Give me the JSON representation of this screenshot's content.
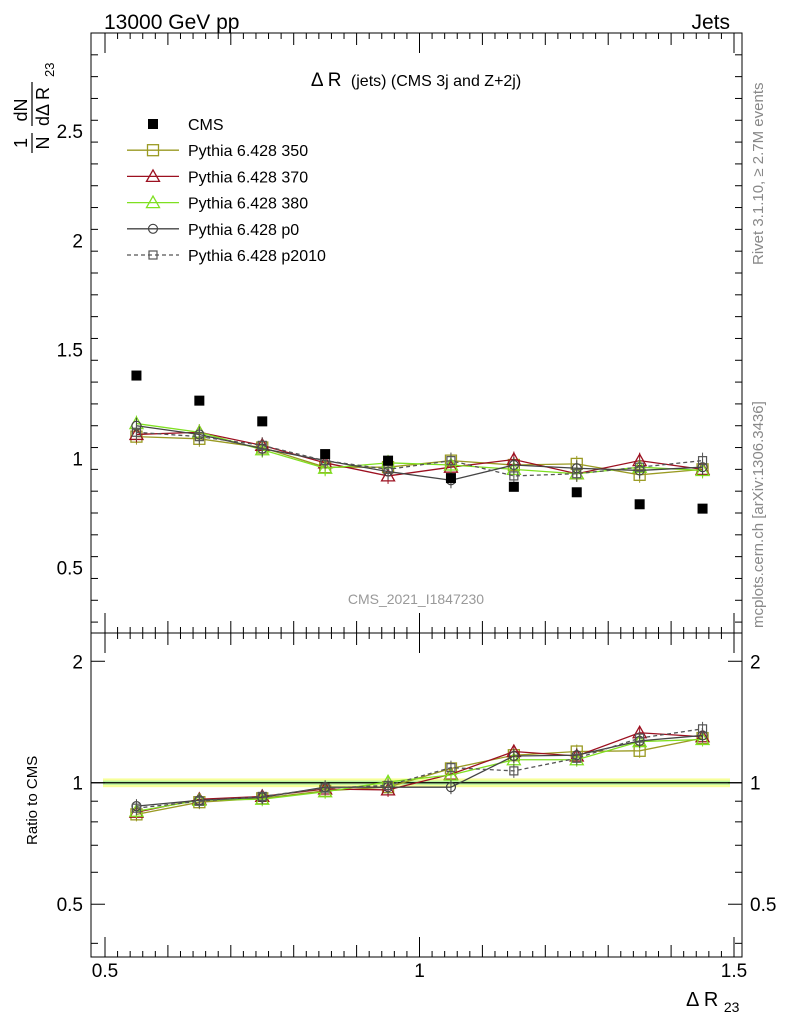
{
  "header": {
    "left": "13000 GeV pp",
    "right": "Jets"
  },
  "side_labels": {
    "rivet": "Rivet 3.1.10, ≥ 2.7M events",
    "mcplots": "mcplots.cern.ch [arXiv:1306.3436]"
  },
  "watermark": "CMS_2021_I1847230",
  "chart_data": [
    {
      "type": "scatter",
      "title_main": "Δ R",
      "title_detail": "(jets) (CMS 3j and Z+2j)",
      "ylabel_num": "1",
      "ylabel_den": "N",
      "ylabel_frac_num": "dN",
      "ylabel_frac_den": "dΔ R",
      "ylabel_sub": "23",
      "xlim": [
        0.5,
        1.5
      ],
      "ylim": [
        0.2,
        2.95
      ],
      "yticks": [
        0.5,
        1,
        1.5,
        2,
        2.5
      ],
      "ytick_labels": [
        "0.5",
        "1",
        "1.5",
        "2",
        "2.5"
      ],
      "x": [
        0.55,
        0.65,
        0.75,
        0.85,
        0.95,
        1.05,
        1.15,
        1.25,
        1.35,
        1.45
      ],
      "legend_position": "top-left",
      "series": [
        {
          "name": "CMS",
          "marker": "filled-square",
          "color": "#000000",
          "dash": "none",
          "values": [
            1.38,
            1.265,
            1.17,
            1.02,
            0.99,
            0.91,
            0.87,
            0.845,
            0.79,
            0.77
          ]
        },
        {
          "name": "Pythia 6.428 350",
          "marker": "open-square",
          "color": "#9a9a22",
          "dash": "none",
          "values": [
            1.1,
            1.09,
            1.05,
            0.96,
            0.96,
            0.99,
            0.97,
            0.975,
            0.925,
            0.95
          ]
        },
        {
          "name": "Pythia 6.428 370",
          "marker": "open-triangle",
          "color": "#9c1020",
          "dash": "none",
          "values": [
            1.11,
            1.12,
            1.06,
            0.98,
            0.92,
            0.96,
            0.995,
            0.93,
            0.99,
            0.95
          ]
        },
        {
          "name": "Pythia 6.428 380",
          "marker": "open-triangle",
          "color": "#7fe020",
          "dash": "none",
          "values": [
            1.16,
            1.12,
            1.04,
            0.955,
            0.98,
            0.97,
            0.95,
            0.93,
            0.96,
            0.945
          ]
        },
        {
          "name": "Pythia 6.428 p0",
          "marker": "open-circle",
          "color": "#444444",
          "dash": "none",
          "values": [
            1.15,
            1.11,
            1.045,
            0.99,
            0.94,
            0.9,
            0.97,
            0.955,
            0.945,
            0.96
          ]
        },
        {
          "name": "Pythia 6.428 p2010",
          "marker": "open-square-small",
          "color": "#555555",
          "dash": "dashed",
          "values": [
            1.12,
            1.1,
            1.06,
            0.99,
            0.95,
            0.99,
            0.92,
            0.93,
            0.96,
            0.99
          ]
        }
      ]
    },
    {
      "type": "scatter",
      "ylabel": "Ratio to CMS",
      "xlabel_main": "Δ R",
      "xlabel_sub": "23",
      "xlim": [
        0.5,
        1.5
      ],
      "ylim": [
        0.37,
        2.35
      ],
      "xticks": [
        0.5,
        1,
        1.5
      ],
      "xtick_labels": [
        "0.5",
        "1",
        "1.5"
      ],
      "yticks": [
        0.5,
        1,
        2
      ],
      "ytick_labels": [
        "0.5",
        "1",
        "2"
      ],
      "reference": 1,
      "x": [
        0.55,
        0.65,
        0.75,
        0.85,
        0.95,
        1.05,
        1.15,
        1.25,
        1.35,
        1.45
      ],
      "series": [
        {
          "name": "Pythia 6.428 350",
          "color": "#9a9a22",
          "marker": "open-square",
          "dash": "none",
          "values": [
            0.835,
            0.895,
            0.915,
            0.955,
            0.975,
            1.085,
            1.17,
            1.195,
            1.2,
            1.29
          ]
        },
        {
          "name": "Pythia 6.428 370",
          "color": "#9c1020",
          "marker": "open-triangle",
          "dash": "none",
          "values": [
            0.845,
            0.91,
            0.925,
            0.965,
            0.96,
            1.05,
            1.195,
            1.165,
            1.33,
            1.3
          ]
        },
        {
          "name": "Pythia 6.428 380",
          "color": "#7fe020",
          "marker": "open-triangle",
          "dash": "none",
          "values": [
            0.85,
            0.905,
            0.91,
            0.95,
            1.005,
            1.045,
            1.14,
            1.14,
            1.265,
            1.28
          ]
        },
        {
          "name": "Pythia 6.428 p0",
          "color": "#444444",
          "marker": "open-circle",
          "dash": "none",
          "values": [
            0.875,
            0.905,
            0.92,
            0.975,
            0.975,
            0.975,
            1.165,
            1.17,
            1.27,
            1.31
          ]
        },
        {
          "name": "Pythia 6.428 p2010",
          "color": "#555555",
          "marker": "open-square-small",
          "dash": "dashed",
          "values": [
            0.865,
            0.9,
            0.925,
            0.97,
            0.985,
            1.09,
            1.07,
            1.15,
            1.29,
            1.36
          ]
        }
      ]
    }
  ]
}
